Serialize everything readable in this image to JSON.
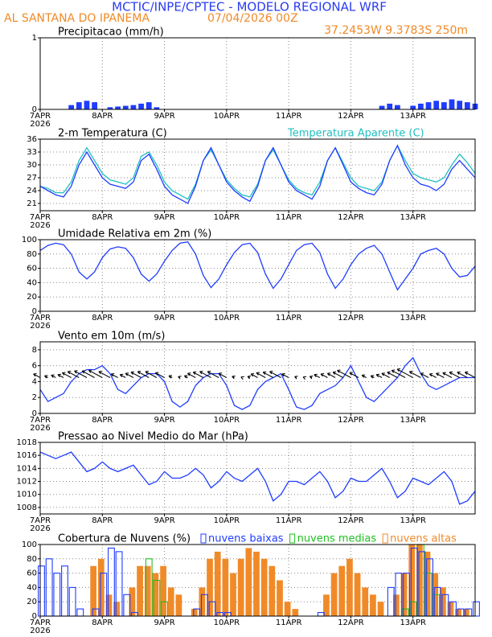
{
  "header": {
    "title": "MCTIC/INPE/CPTEC - MODELO REGIONAL WRF",
    "location": "AL SANTANA DO IPANEMA",
    "run": "07/04/2026 00Z",
    "coords": "37.2453W 9.3783S 250m"
  },
  "chart_data": [
    {
      "type": "bar",
      "title": "Precipitacao (mm/h)",
      "x_sublabel": "2026",
      "grid": true,
      "xlim": [
        0,
        168
      ],
      "xticks": [
        {
          "value": 0,
          "label": "7APR"
        },
        {
          "value": 24,
          "label": "8APR"
        },
        {
          "value": 48,
          "label": "9APR"
        },
        {
          "value": 72,
          "label": "10APR"
        },
        {
          "value": 96,
          "label": "11APR"
        },
        {
          "value": 120,
          "label": "12APR"
        },
        {
          "value": 144,
          "label": "13APR"
        }
      ],
      "ylim": [
        0,
        1
      ],
      "yticks": [
        0,
        1
      ],
      "x": [
        0,
        3,
        6,
        9,
        12,
        15,
        18,
        21,
        24,
        27,
        30,
        33,
        36,
        39,
        42,
        45,
        48,
        51,
        54,
        57,
        60,
        63,
        66,
        69,
        72,
        75,
        78,
        81,
        84,
        87,
        90,
        93,
        96,
        99,
        102,
        105,
        108,
        111,
        114,
        117,
        120,
        123,
        126,
        129,
        132,
        135,
        138,
        141,
        144,
        147,
        150,
        153,
        156,
        159,
        162,
        165,
        168
      ],
      "series": [
        {
          "color": "#1f3cff",
          "filled": true,
          "values": [
            0,
            0,
            0,
            0,
            0.06,
            0.1,
            0.12,
            0.1,
            0,
            0.03,
            0.04,
            0.05,
            0.06,
            0.08,
            0.1,
            0.03,
            0,
            0,
            0,
            0,
            0,
            0,
            0,
            0,
            0,
            0,
            0,
            0,
            0,
            0,
            0,
            0,
            0,
            0,
            0,
            0,
            0,
            0,
            0,
            0,
            0,
            0,
            0,
            0,
            0.05,
            0.08,
            0.06,
            0,
            0.05,
            0.08,
            0.1,
            0.12,
            0.1,
            0.14,
            0.12,
            0.1,
            0.08
          ]
        }
      ]
    },
    {
      "type": "line",
      "title": "2-m Temperatura (C)",
      "x_sublabel": "2026",
      "grid": true,
      "xlim": [
        0,
        168
      ],
      "xticks": [
        {
          "value": 0,
          "label": "7APR"
        },
        {
          "value": 24,
          "label": "8APR"
        },
        {
          "value": 48,
          "label": "9APR"
        },
        {
          "value": 72,
          "label": "10APR"
        },
        {
          "value": 96,
          "label": "11APR"
        },
        {
          "value": 120,
          "label": "12APR"
        },
        {
          "value": 144,
          "label": "13APR"
        }
      ],
      "ylim": [
        19.3,
        36
      ],
      "yticks": [
        21,
        24,
        27,
        30,
        33,
        36
      ],
      "x": [
        0,
        3,
        6,
        9,
        12,
        15,
        18,
        21,
        24,
        27,
        30,
        33,
        36,
        39,
        42,
        45,
        48,
        51,
        54,
        57,
        60,
        63,
        66,
        69,
        72,
        75,
        78,
        81,
        84,
        87,
        90,
        93,
        96,
        99,
        102,
        105,
        108,
        111,
        114,
        117,
        120,
        123,
        126,
        129,
        132,
        135,
        138,
        141,
        144,
        147,
        150,
        153,
        156,
        159,
        162,
        165,
        168
      ],
      "series": [
        {
          "name": "Temperatura Aparente (C)",
          "color": "#20c0c0",
          "values": [
            25,
            24.5,
            23.5,
            23.5,
            26,
            31,
            34,
            31,
            28,
            26.5,
            26,
            25.5,
            27,
            32,
            33,
            30,
            26,
            24,
            23,
            22,
            25.5,
            31,
            33.5,
            30,
            26.5,
            24.5,
            23,
            22.5,
            25.5,
            31,
            33.5,
            30,
            26.5,
            24.5,
            23.5,
            23,
            26,
            31,
            34,
            30.5,
            27,
            25,
            24.5,
            24,
            26,
            31,
            34.5,
            31,
            28,
            27,
            26.5,
            26,
            27,
            30,
            32.5,
            30.5,
            28
          ]
        },
        {
          "color": "#1f3cff",
          "values": [
            25,
            24,
            23,
            22.5,
            25,
            30,
            33,
            30,
            27,
            25.5,
            25,
            24.5,
            26,
            31,
            32.5,
            29,
            25,
            23,
            22,
            21,
            25,
            31,
            34,
            30,
            26,
            24,
            22.5,
            21.5,
            25,
            31,
            34,
            30,
            26,
            24,
            23,
            22,
            25,
            31,
            34,
            30,
            26,
            24.5,
            23.5,
            23,
            25.5,
            31,
            34.5,
            30,
            27,
            25.5,
            25,
            24,
            25.5,
            29,
            31,
            29,
            27
          ]
        }
      ]
    },
    {
      "type": "line",
      "title": "Umidade Relativa em 2m (%)",
      "x_sublabel": "2026",
      "grid": true,
      "xlim": [
        0,
        168
      ],
      "xticks": [
        {
          "value": 0,
          "label": "7APR"
        },
        {
          "value": 24,
          "label": "8APR"
        },
        {
          "value": 48,
          "label": "9APR"
        },
        {
          "value": 72,
          "label": "10APR"
        },
        {
          "value": 96,
          "label": "11APR"
        },
        {
          "value": 120,
          "label": "12APR"
        },
        {
          "value": 144,
          "label": "13APR"
        }
      ],
      "ylim": [
        0,
        100
      ],
      "yticks": [
        0,
        20,
        40,
        60,
        80,
        100
      ],
      "x": [
        0,
        3,
        6,
        9,
        12,
        15,
        18,
        21,
        24,
        27,
        30,
        33,
        36,
        39,
        42,
        45,
        48,
        51,
        54,
        57,
        60,
        63,
        66,
        69,
        72,
        75,
        78,
        81,
        84,
        87,
        90,
        93,
        96,
        99,
        102,
        105,
        108,
        111,
        114,
        117,
        120,
        123,
        126,
        129,
        132,
        135,
        138,
        141,
        144,
        147,
        150,
        153,
        156,
        159,
        162,
        165,
        168
      ],
      "series": [
        {
          "color": "#1f3cff",
          "values": [
            85,
            92,
            95,
            93,
            80,
            55,
            45,
            55,
            75,
            87,
            90,
            88,
            75,
            52,
            42,
            52,
            70,
            85,
            95,
            97,
            80,
            50,
            33,
            45,
            65,
            82,
            93,
            95,
            82,
            52,
            32,
            45,
            65,
            85,
            93,
            95,
            82,
            52,
            32,
            45,
            65,
            80,
            88,
            92,
            80,
            55,
            30,
            45,
            60,
            80,
            85,
            88,
            80,
            60,
            48,
            50,
            63
          ]
        }
      ]
    },
    {
      "type": "line",
      "title": "Vento em 10m (m/s)",
      "x_sublabel": "2026",
      "grid": true,
      "arrows": true,
      "xlim": [
        0,
        168
      ],
      "xticks": [
        {
          "value": 0,
          "label": "7APR"
        },
        {
          "value": 24,
          "label": "8APR"
        },
        {
          "value": 48,
          "label": "9APR"
        },
        {
          "value": 72,
          "label": "10APR"
        },
        {
          "value": 96,
          "label": "11APR"
        },
        {
          "value": 120,
          "label": "12APR"
        },
        {
          "value": 144,
          "label": "13APR"
        }
      ],
      "ylim": [
        0,
        9
      ],
      "yticks": [
        0,
        2,
        4,
        6,
        8
      ],
      "x": [
        0,
        3,
        6,
        9,
        12,
        15,
        18,
        21,
        24,
        27,
        30,
        33,
        36,
        39,
        42,
        45,
        48,
        51,
        54,
        57,
        60,
        63,
        66,
        69,
        72,
        75,
        78,
        81,
        84,
        87,
        90,
        93,
        96,
        99,
        102,
        105,
        108,
        111,
        114,
        117,
        120,
        123,
        126,
        129,
        132,
        135,
        138,
        141,
        144,
        147,
        150,
        153,
        156,
        159,
        162,
        165,
        168
      ],
      "series": [
        {
          "color": "#1f3cff",
          "values": [
            3,
            1.5,
            2,
            2.5,
            4,
            5,
            5.5,
            5.5,
            6,
            5,
            3,
            2.5,
            3.5,
            4.5,
            5,
            5,
            4,
            1.5,
            0.8,
            1.5,
            3.5,
            4.5,
            5,
            5,
            3.5,
            1,
            0.5,
            1,
            3,
            4,
            4.5,
            5,
            3,
            0.8,
            0.5,
            1,
            2.5,
            3,
            3.5,
            4.5,
            6,
            4,
            2,
            1.5,
            2.5,
            3.5,
            4.5,
            6,
            7,
            5,
            3.5,
            3,
            3.5,
            4,
            4.5,
            4.5,
            4.5
          ]
        }
      ]
    },
    {
      "type": "line",
      "title": "Pressao ao Nivel Medio do Mar (hPa)",
      "x_sublabel": "2026",
      "grid": true,
      "xlim": [
        0,
        168
      ],
      "xticks": [
        {
          "value": 0,
          "label": "7APR"
        },
        {
          "value": 24,
          "label": "8APR"
        },
        {
          "value": 48,
          "label": "9APR"
        },
        {
          "value": 72,
          "label": "10APR"
        },
        {
          "value": 96,
          "label": "11APR"
        },
        {
          "value": 120,
          "label": "12APR"
        },
        {
          "value": 144,
          "label": "13APR"
        }
      ],
      "ylim": [
        1007,
        1018
      ],
      "yticks": [
        1008,
        1010,
        1012,
        1014,
        1016,
        1018
      ],
      "x": [
        0,
        3,
        6,
        9,
        12,
        15,
        18,
        21,
        24,
        27,
        30,
        33,
        36,
        39,
        42,
        45,
        48,
        51,
        54,
        57,
        60,
        63,
        66,
        69,
        72,
        75,
        78,
        81,
        84,
        87,
        90,
        93,
        96,
        99,
        102,
        105,
        108,
        111,
        114,
        117,
        120,
        123,
        126,
        129,
        132,
        135,
        138,
        141,
        144,
        147,
        150,
        153,
        156,
        159,
        162,
        165,
        168
      ],
      "series": [
        {
          "color": "#1f3cff",
          "values": [
            1016.5,
            1016,
            1015.5,
            1016,
            1016.5,
            1015,
            1013.5,
            1014,
            1015,
            1014,
            1013.5,
            1014,
            1014.5,
            1013,
            1011.5,
            1012,
            1013.5,
            1012.5,
            1012.5,
            1013,
            1014,
            1013,
            1011,
            1012,
            1013.5,
            1012.5,
            1012,
            1013,
            1014,
            1012,
            1009,
            1010,
            1012,
            1012,
            1011.5,
            1012.5,
            1013.5,
            1012,
            1009.5,
            1010.5,
            1012.5,
            1012,
            1012,
            1013,
            1014,
            1012,
            1009.5,
            1010.5,
            1012.5,
            1012,
            1011.5,
            1012.5,
            1013.5,
            1012,
            1008.5,
            1009,
            1010.5
          ]
        }
      ]
    },
    {
      "type": "bar",
      "title": "Cobertura de Nuvens (%)",
      "x_sublabel": "2026",
      "grid": true,
      "xlim": [
        0,
        168
      ],
      "xticks": [
        {
          "value": 0,
          "label": "7APR"
        },
        {
          "value": 24,
          "label": "8APR"
        },
        {
          "value": 48,
          "label": "9APR"
        },
        {
          "value": 72,
          "label": "10APR"
        },
        {
          "value": 96,
          "label": "11APR"
        },
        {
          "value": 120,
          "label": "12APR"
        },
        {
          "value": 144,
          "label": "13APR"
        }
      ],
      "ylim": [
        0,
        100
      ],
      "yticks": [
        0,
        20,
        40,
        60,
        80,
        100
      ],
      "x": [
        0,
        3,
        6,
        9,
        12,
        15,
        18,
        21,
        24,
        27,
        30,
        33,
        36,
        39,
        42,
        45,
        48,
        51,
        54,
        57,
        60,
        63,
        66,
        69,
        72,
        75,
        78,
        81,
        84,
        87,
        90,
        93,
        96,
        99,
        102,
        105,
        108,
        111,
        114,
        117,
        120,
        123,
        126,
        129,
        132,
        135,
        138,
        141,
        144,
        147,
        150,
        153,
        156,
        159,
        162,
        165,
        168
      ],
      "series": [
        {
          "name": "nuvens altas",
          "color": "#f08a28",
          "filled": true,
          "values": [
            0,
            0,
            0,
            0,
            0,
            0,
            0,
            70,
            80,
            30,
            20,
            0,
            40,
            70,
            70,
            60,
            70,
            40,
            30,
            0,
            10,
            40,
            80,
            90,
            80,
            60,
            80,
            95,
            90,
            80,
            70,
            50,
            20,
            10,
            0,
            0,
            0,
            30,
            60,
            70,
            80,
            60,
            40,
            30,
            20,
            0,
            30,
            60,
            100,
            100,
            90,
            60,
            40,
            20,
            10,
            10,
            0
          ]
        },
        {
          "name": "nuvens medias",
          "color": "#20c020",
          "filled": false,
          "values": [
            0,
            0,
            0,
            0,
            0,
            0,
            0,
            0,
            0,
            0,
            0,
            0,
            0,
            0,
            80,
            50,
            20,
            0,
            0,
            0,
            0,
            0,
            0,
            0,
            0,
            0,
            0,
            0,
            0,
            0,
            0,
            0,
            0,
            0,
            0,
            0,
            0,
            0,
            0,
            0,
            0,
            0,
            0,
            0,
            0,
            0,
            0,
            10,
            20,
            100,
            60,
            30,
            0,
            0,
            0,
            0,
            0
          ]
        },
        {
          "name": "nuvens baixas",
          "color": "#1f3cff",
          "filled": false,
          "values": [
            70,
            80,
            60,
            70,
            40,
            10,
            0,
            10,
            60,
            95,
            90,
            30,
            5,
            0,
            0,
            0,
            0,
            0,
            0,
            0,
            10,
            30,
            20,
            5,
            5,
            0,
            0,
            0,
            0,
            0,
            0,
            0,
            0,
            0,
            0,
            0,
            5,
            0,
            0,
            0,
            0,
            0,
            0,
            0,
            0,
            40,
            60,
            60,
            95,
            90,
            80,
            40,
            30,
            20,
            10,
            10,
            20
          ]
        }
      ]
    }
  ]
}
